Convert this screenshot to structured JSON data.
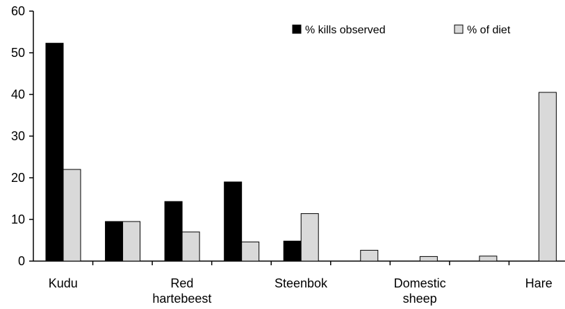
{
  "chart_data": {
    "type": "bar",
    "categories": [
      "Kudu",
      "",
      "Red hartebeest",
      "",
      "Steenbok",
      "",
      "Domestic sheep",
      "",
      "Hare"
    ],
    "category_label_lines": [
      [
        "Kudu"
      ],
      [],
      [
        "Red",
        "hartebeest"
      ],
      [],
      [
        "Steenbok"
      ],
      [],
      [
        "Domestic",
        "sheep"
      ],
      [],
      [
        "Hare"
      ]
    ],
    "series": [
      {
        "name": "% kills observed",
        "color": "#000000",
        "values": [
          52.3,
          9.5,
          14.3,
          19.0,
          4.8,
          0,
          0,
          0,
          0
        ]
      },
      {
        "name": "% of diet",
        "color": "#d9d9d9",
        "values": [
          22.0,
          9.5,
          7.0,
          4.6,
          11.4,
          2.6,
          1.1,
          1.2,
          40.5
        ]
      }
    ],
    "ylim": [
      0,
      60
    ],
    "yticks": [
      "0",
      "10",
      "20",
      "30",
      "40",
      "50",
      "60"
    ],
    "title": "",
    "xlabel": "",
    "ylabel": "",
    "grid": false,
    "legend": "top-right"
  }
}
